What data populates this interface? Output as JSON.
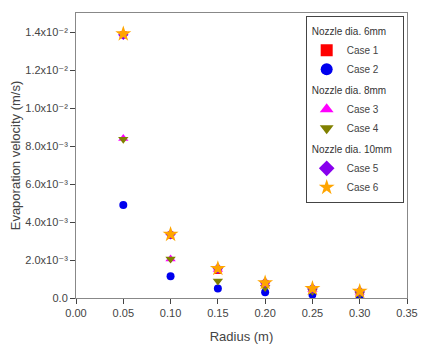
{
  "chart_data": {
    "type": "scatter",
    "xlabel": "Radius (m)",
    "ylabel": "Evaporation velocity (m/s)",
    "x": [
      0.05,
      0.1,
      0.15,
      0.2,
      0.25,
      0.3
    ],
    "xlim": [
      0.0,
      0.35
    ],
    "ylim": [
      0.0,
      0.015
    ],
    "xticks": [
      {
        "value": 0.0,
        "label": "0.00"
      },
      0.05,
      {
        "value": 0.1,
        "label": "0.10"
      },
      0.15,
      {
        "value": 0.2,
        "label": "0.20"
      },
      0.25,
      {
        "value": 0.3,
        "label": "0.30"
      },
      0.35
    ],
    "yticks": [
      {
        "value": 0.0,
        "label": "0.0"
      },
      {
        "value": 0.002,
        "label": "2.0x10⁻³"
      },
      {
        "value": 0.004,
        "label": "4.0x10⁻³"
      },
      {
        "value": 0.006,
        "label": "6.0x10⁻³"
      },
      {
        "value": 0.008,
        "label": "8.0x10⁻³"
      },
      {
        "value": 0.01,
        "label": "1.0x10⁻²"
      },
      {
        "value": 0.012,
        "label": "1.2x10⁻²"
      },
      {
        "value": 0.014,
        "label": "1.4x10⁻²"
      }
    ],
    "grid": false,
    "legend": "upper right",
    "series": [
      {
        "name": "Case 1",
        "group": "Nozzle dia. 6mm",
        "color": "#ff0000",
        "marker": "square",
        "values": [
          0.01385,
          0.0033,
          0.00145,
          0.00075,
          0.00045,
          0.00025
        ]
      },
      {
        "name": "Case 2",
        "group": "Nozzle dia. 6mm",
        "color": "#0000ee",
        "marker": "circle",
        "values": [
          0.0049,
          0.00115,
          0.0005,
          0.0003,
          0.00018,
          0.0001
        ]
      },
      {
        "name": "Case 3",
        "group": "Nozzle dia. 8mm",
        "color": "#ff00ff",
        "marker": "triangle-up",
        "values": [
          0.0084,
          0.00205,
          0.0015,
          0.00075,
          0.00045,
          0.0003
        ]
      },
      {
        "name": "Case 4",
        "group": "Nozzle dia. 8mm",
        "color": "#808000",
        "marker": "triangle-down",
        "values": [
          0.00835,
          0.00205,
          0.0009,
          0.00055,
          0.00035,
          0.0002
        ]
      },
      {
        "name": "Case 5",
        "group": "Nozzle dia. 10mm",
        "color": "#8800ee",
        "marker": "diamond",
        "values": [
          0.01385,
          0.00335,
          0.00155,
          0.0008,
          0.0005,
          0.00035
        ]
      },
      {
        "name": "Case 6",
        "group": "Nozzle dia. 10mm",
        "color": "#ffa500",
        "marker": "star",
        "values": [
          0.0139,
          0.00335,
          0.00155,
          0.0008,
          0.0005,
          0.00035
        ]
      }
    ]
  }
}
